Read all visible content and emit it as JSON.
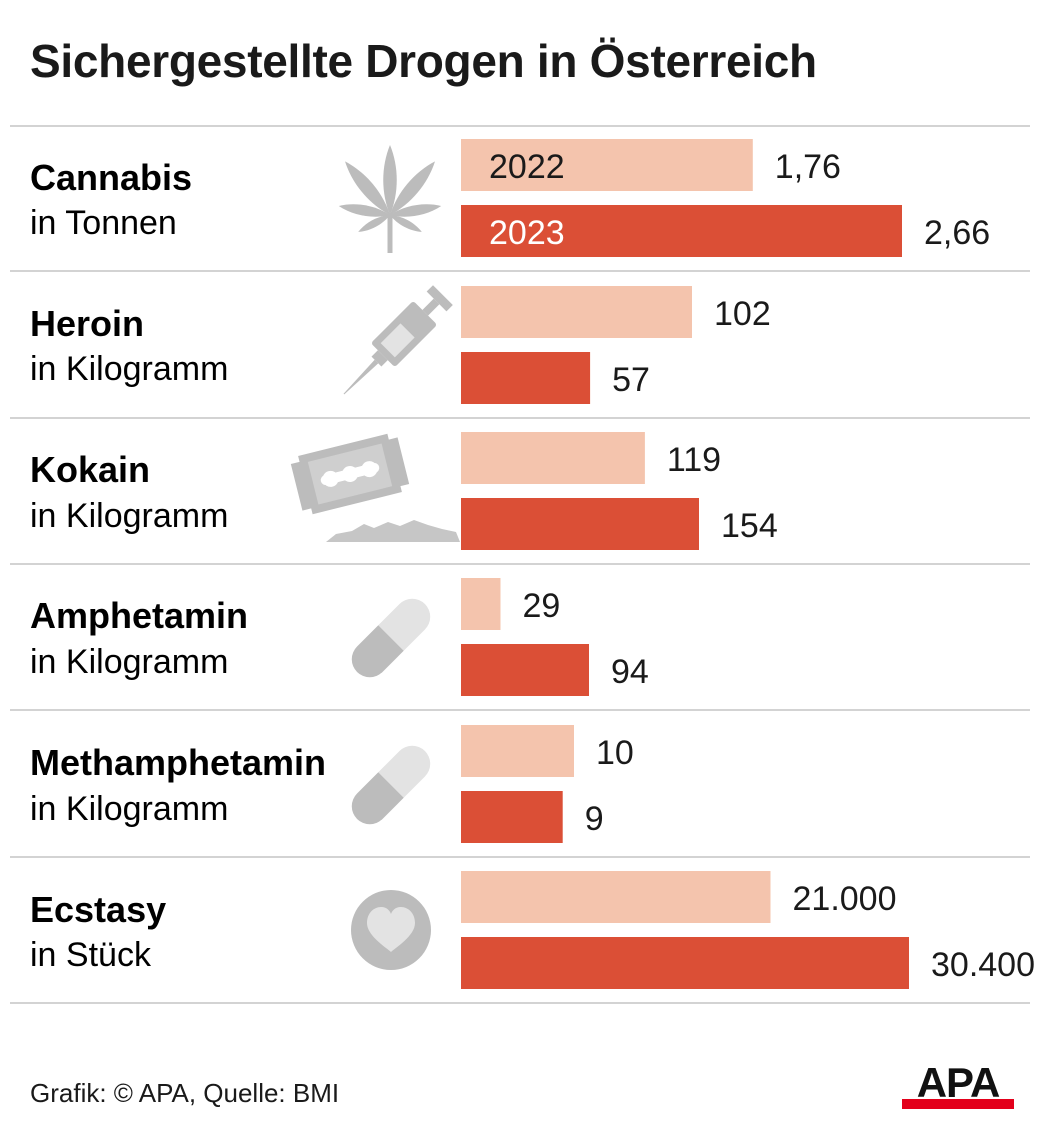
{
  "title": "Sichergestellte Drogen in Österreich",
  "source": "Grafik: © APA, Quelle: BMI",
  "logo_text": "APA",
  "colors": {
    "y2022": "#f4c4ad",
    "y2023": "#db4f36",
    "icon": "#bcbcbc",
    "icon_light": "#e3e3e3",
    "rule": "#d3d3d3"
  },
  "chart_data": {
    "type": "bar",
    "orientation": "horizontal",
    "title": "Sichergestellte Drogen in Österreich",
    "series_labels": [
      "2022",
      "2023"
    ],
    "groups": [
      {
        "name": "Cannabis",
        "unit": "in Tonnen",
        "icon": "cannabis-leaf-icon",
        "values": [
          1.76,
          2.66
        ],
        "labels": [
          "1,76",
          "2,66"
        ]
      },
      {
        "name": "Heroin",
        "unit": "in Kilogramm",
        "icon": "syringe-icon",
        "values": [
          102,
          57
        ],
        "labels": [
          "102",
          "57"
        ]
      },
      {
        "name": "Kokain",
        "unit": "in Kilogramm",
        "icon": "razor-blade-icon",
        "values": [
          119,
          154
        ],
        "labels": [
          "119",
          "154"
        ]
      },
      {
        "name": "Amphetamin",
        "unit": "in Kilogramm",
        "icon": "capsule-icon",
        "values": [
          29,
          94
        ],
        "labels": [
          "29",
          "94"
        ]
      },
      {
        "name": "Methamphetamin",
        "unit": "in Kilogramm",
        "icon": "capsule-icon",
        "values": [
          10,
          9
        ],
        "labels": [
          "10",
          "9"
        ]
      },
      {
        "name": "Ecstasy",
        "unit": "in Stück",
        "icon": "heart-pill-icon",
        "values": [
          21000,
          30400
        ],
        "labels": [
          "21.000",
          "30.400"
        ]
      }
    ]
  }
}
